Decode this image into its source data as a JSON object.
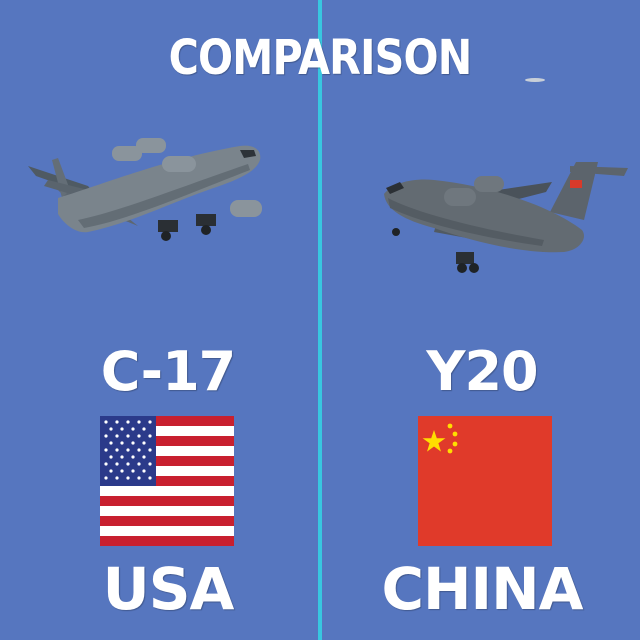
{
  "title": "COMPARISON",
  "left": {
    "model": "C-17",
    "country": "USA",
    "flag_icon": "usa-flag-icon",
    "aircraft_icon": "c17-aircraft-icon"
  },
  "right": {
    "model": "Y20",
    "country": "CHINA",
    "flag_icon": "china-flag-icon",
    "aircraft_icon": "y20-aircraft-icon"
  },
  "colors": {
    "background": "#5676bf",
    "divider": "#38c7e0",
    "text": "#ffffff",
    "usa_red": "#c8202f",
    "usa_blue": "#2b3a8a",
    "china_red": "#e03a2a",
    "china_star": "#ffde00"
  }
}
